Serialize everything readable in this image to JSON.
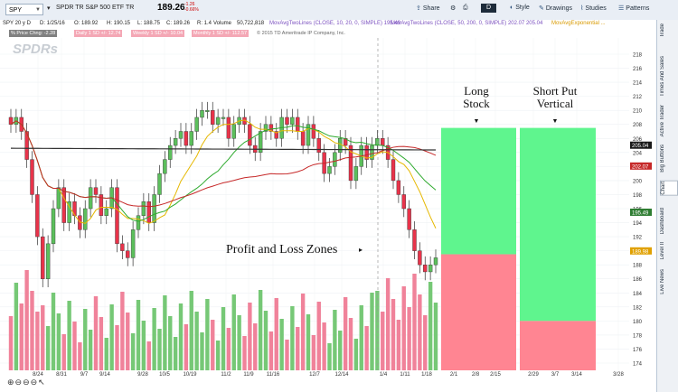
{
  "header": {
    "symbol": "SPY",
    "description": "SPDR TR S&P 500 ETF TR",
    "price": "189.26",
    "change_top": "-1.26",
    "change_pct": "-0.66%",
    "toolbar": {
      "share": "Share",
      "style": "Style",
      "drawings": "Drawings",
      "studies": "Studies",
      "patterns": "Patterns",
      "period": "D"
    }
  },
  "info_bar": {
    "timeframe": "SPY 20 y D",
    "date": "D: 1/25/16",
    "open": "O: 189.92",
    "high": "H: 190.15",
    "low": "L: 188.75",
    "close": "C: 189.26",
    "range": "R: 1.4",
    "volume": "Volume",
    "volume_val": "50,722,818",
    "ma1": "MovAvgTwoLines (CLOSE, 10, 20, 0, SIMPLE) 195.49",
    "ma2": "MovAvgTwoLines (CLOSE, 50, 200, 0, SIMPLE) 202.07  205.04",
    "ma3": "MovAvgExponential ..."
  },
  "studies": [
    {
      "text": "% Price Chng: -2.28",
      "color": "#808080"
    },
    {
      "text": "Daily 1 SD +/- 12.74",
      "color": "#f4a7b5"
    },
    {
      "text": "Weekly 1 SD +/- 10.04",
      "color": "#f4a7b5"
    },
    {
      "text": "Monthly 1 SD +/- 112.57",
      "color": "#f4a7b5"
    },
    {
      "text": "© 2015 TD Ameritrade IP Company, Inc.",
      "color": "transparent"
    }
  ],
  "logo": "SPDRs",
  "annotation": "Profit and Loss Zones",
  "zones": [
    {
      "title_lines": [
        "Long",
        "Stock"
      ]
    },
    {
      "title_lines": [
        "Short Put",
        "Vertical"
      ]
    }
  ],
  "price_axis": [
    "218",
    "216",
    "214",
    "212",
    "210",
    "208",
    "206",
    "204",
    "202",
    "200",
    "198",
    "196",
    "194",
    "192",
    "190",
    "188",
    "186",
    "184",
    "182",
    "180",
    "178",
    "176",
    "174"
  ],
  "price_markers": [
    {
      "value": "205.04",
      "color": "#1a1a1a"
    },
    {
      "value": "202.07",
      "color": "#c62828"
    },
    {
      "value": "195.49",
      "color": "#2e7d32"
    },
    {
      "value": "189.98",
      "color": "#e0a000"
    }
  ],
  "date_axis": [
    "8/24",
    "8/31",
    "9/7",
    "9/14",
    "9/28",
    "10/5",
    "10/19",
    "11/2",
    "11/9",
    "11/16",
    "12/7",
    "12/14",
    "1/4",
    "1/11",
    "1/18",
    "2/1",
    "2/8",
    "2/15",
    "2/29",
    "3/7",
    "3/14",
    "3/28"
  ],
  "sidebar_tabs": [
    "Trade",
    "Times And Sales",
    "Active Trader",
    "Big Buttons",
    "Chart",
    "Dashboard",
    "Level II",
    "Live News"
  ],
  "zoom_icons": [
    "zoom-in-icon",
    "zoom-out-icon",
    "zoom-fit-icon",
    "zoom-area-icon",
    "pointer-icon"
  ],
  "colors": {
    "up": "#5cbf5c",
    "down": "#e8334a",
    "profit": "#5ff58e",
    "loss": "#ff8592",
    "ma10": "#e6b800",
    "ma20": "#2eaa2e",
    "ma50": "#c62828",
    "ma200": "#333333"
  }
}
